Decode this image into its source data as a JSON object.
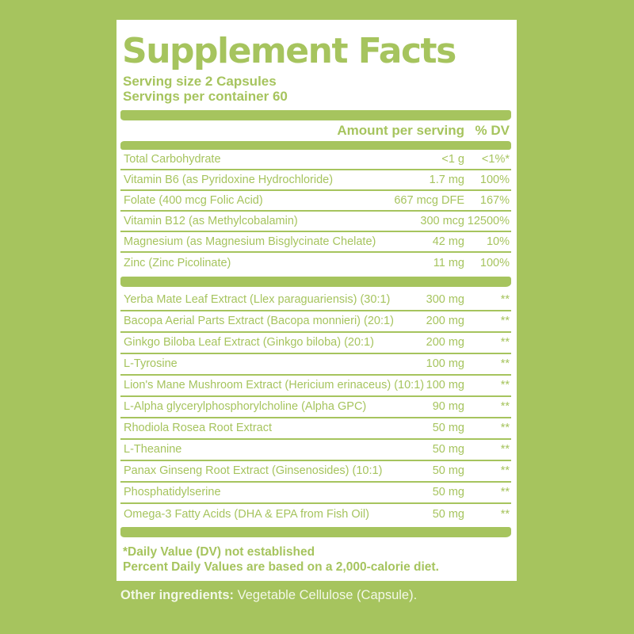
{
  "colors": {
    "background_green": "#a6c45e",
    "panel_white": "#ffffff",
    "label_text_green": "#a6c45e",
    "footer_text": "#f3f8e8"
  },
  "label": {
    "title": "Supplement Facts",
    "serving_size": "Serving size 2 Capsules",
    "servings_per_container": "Servings per container 60",
    "header": {
      "amount": "Amount per serving",
      "dv": "% DV"
    },
    "sections": [
      {
        "name": "vitamins-minerals",
        "rows": [
          {
            "name": "Total Carbohydrate",
            "amount": "<1 g",
            "dv": "<1%*"
          },
          {
            "name": "Vitamin B6 (as Pyridoxine Hydrochloride)",
            "amount": "1.7 mg",
            "dv": "100%"
          },
          {
            "name": "Folate (400 mcg Folic Acid)",
            "amount": "667 mcg DFE",
            "dv": "167%"
          },
          {
            "name": "Vitamin B12 (as Methylcobalamin)",
            "amount": "300 mcg",
            "dv": "12500%"
          },
          {
            "name": "Magnesium (as Magnesium Bisglycinate Chelate)",
            "amount": "42 mg",
            "dv": "10%"
          },
          {
            "name": "Zinc (Zinc Picolinate)",
            "amount": "11 mg",
            "dv": "100%"
          }
        ]
      },
      {
        "name": "botanicals-blend",
        "rows": [
          {
            "name": "Yerba Mate Leaf Extract (Llex paraguariensis)  (30:1)",
            "amount": "300 mg",
            "dv": "**"
          },
          {
            "name": "Bacopa Aerial Parts Extract (Bacopa monnieri) (20:1)",
            "amount": "200 mg",
            "dv": "**"
          },
          {
            "name": "Ginkgo Biloba Leaf Extract (Ginkgo biloba) (20:1)",
            "amount": "200 mg",
            "dv": "**"
          },
          {
            "name": "L-Tyrosine",
            "amount": "100 mg",
            "dv": "**"
          },
          {
            "name": "Lion's Mane Mushroom Extract (Hericium erinaceus) (10:1)",
            "amount": "100 mg",
            "dv": "**"
          },
          {
            "name": "L-Alpha glycerylphosphorylcholine (Alpha GPC)",
            "amount": "90 mg",
            "dv": "**"
          },
          {
            "name": "Rhodiola Rosea Root Extract",
            "amount": "50 mg",
            "dv": "**"
          },
          {
            "name": "L-Theanine",
            "amount": "50 mg",
            "dv": "**"
          },
          {
            "name": "Panax Ginseng Root Extract (Ginsenosides) (10:1)",
            "amount": "50 mg",
            "dv": "**"
          },
          {
            "name": "Phosphatidylserine",
            "amount": "50 mg",
            "dv": "**"
          },
          {
            "name": "Omega-3 Fatty Acids (DHA & EPA from Fish Oil)",
            "amount": "50 mg",
            "dv": "**"
          }
        ]
      }
    ],
    "footnotes": [
      "*Daily Value (DV) not established",
      "Percent Daily Values are based on a 2,000-calorie diet."
    ],
    "other_ingredients_label": "Other ingredients:",
    "other_ingredients_value": "Vegetable Cellulose (Capsule)."
  }
}
